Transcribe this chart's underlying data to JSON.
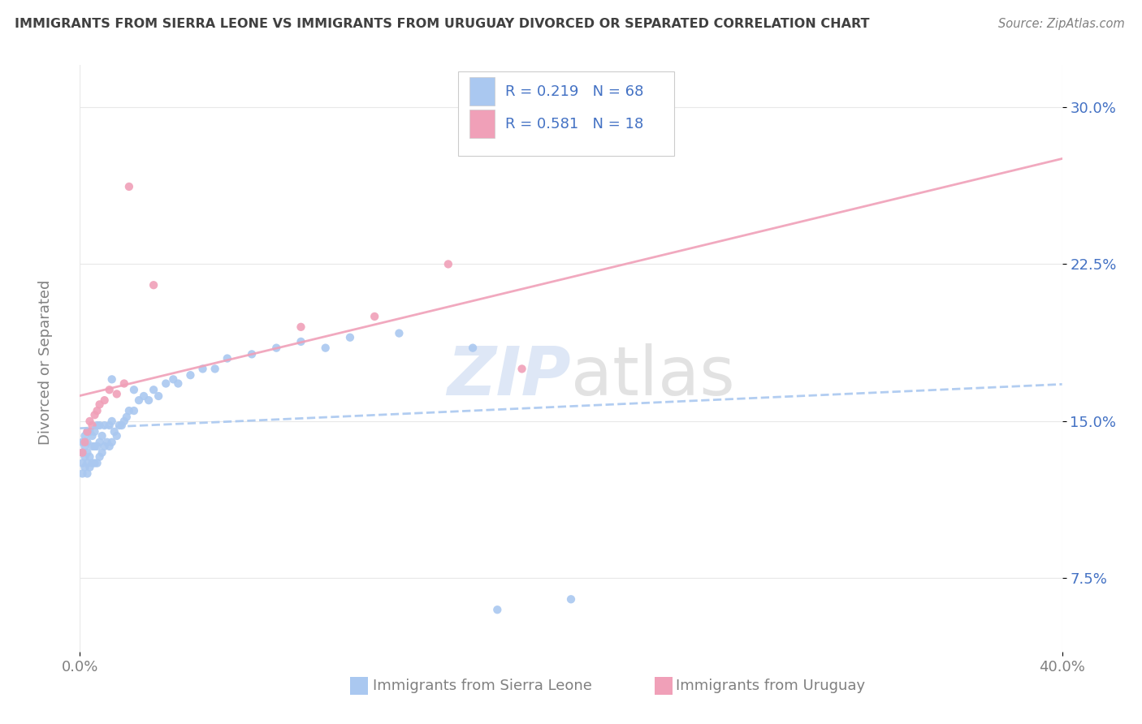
{
  "title": "IMMIGRANTS FROM SIERRA LEONE VS IMMIGRANTS FROM URUGUAY DIVORCED OR SEPARATED CORRELATION CHART",
  "source": "Source: ZipAtlas.com",
  "ylabel": "Divorced or Separated",
  "legend_r1": "R = 0.219",
  "legend_n1": "N = 68",
  "legend_r2": "R = 0.581",
  "legend_n2": "N = 18",
  "legend_label1": "Immigrants from Sierra Leone",
  "legend_label2": "Immigrants from Uruguay",
  "color_blue": "#aac8f0",
  "color_pink": "#f0a0b8",
  "color_blue_text": "#4472c4",
  "watermark_zip_color": "#c8d8f0",
  "watermark_atlas_color": "#d0d0d0",
  "xlim": [
    0.0,
    0.4
  ],
  "ylim": [
    0.04,
    0.32
  ],
  "ytick_vals": [
    0.075,
    0.15,
    0.225,
    0.3
  ],
  "ytick_labels": [
    "7.5%",
    "15.0%",
    "22.5%",
    "30.0%"
  ],
  "xtick_vals": [
    0.0,
    0.4
  ],
  "xtick_labels": [
    "0.0%",
    "40.0%"
  ],
  "grid_color": "#e8e8e8",
  "title_color": "#404040",
  "axis_label_color": "#808080",
  "blue_x": [
    0.001,
    0.001,
    0.001,
    0.001,
    0.002,
    0.002,
    0.002,
    0.002,
    0.003,
    0.003,
    0.003,
    0.003,
    0.003,
    0.004,
    0.004,
    0.004,
    0.005,
    0.005,
    0.005,
    0.006,
    0.006,
    0.006,
    0.007,
    0.007,
    0.007,
    0.008,
    0.008,
    0.008,
    0.009,
    0.009,
    0.01,
    0.01,
    0.011,
    0.012,
    0.012,
    0.013,
    0.013,
    0.014,
    0.015,
    0.016,
    0.017,
    0.018,
    0.019,
    0.02,
    0.022,
    0.024,
    0.026,
    0.028,
    0.03,
    0.032,
    0.035,
    0.038,
    0.04,
    0.045,
    0.05,
    0.055,
    0.06,
    0.07,
    0.08,
    0.09,
    0.1,
    0.11,
    0.13,
    0.16,
    0.013,
    0.022,
    0.17,
    0.2
  ],
  "blue_y": [
    0.125,
    0.13,
    0.135,
    0.14,
    0.128,
    0.133,
    0.138,
    0.143,
    0.125,
    0.13,
    0.135,
    0.14,
    0.145,
    0.128,
    0.133,
    0.145,
    0.13,
    0.138,
    0.143,
    0.13,
    0.138,
    0.145,
    0.13,
    0.138,
    0.148,
    0.133,
    0.14,
    0.148,
    0.135,
    0.143,
    0.138,
    0.148,
    0.14,
    0.138,
    0.148,
    0.14,
    0.15,
    0.145,
    0.143,
    0.148,
    0.148,
    0.15,
    0.152,
    0.155,
    0.155,
    0.16,
    0.162,
    0.16,
    0.165,
    0.162,
    0.168,
    0.17,
    0.168,
    0.172,
    0.175,
    0.175,
    0.18,
    0.182,
    0.185,
    0.188,
    0.185,
    0.19,
    0.192,
    0.185,
    0.17,
    0.165,
    0.06,
    0.065
  ],
  "pink_x": [
    0.001,
    0.002,
    0.003,
    0.004,
    0.005,
    0.006,
    0.007,
    0.008,
    0.01,
    0.012,
    0.015,
    0.018,
    0.02,
    0.03,
    0.09,
    0.12,
    0.15,
    0.18
  ],
  "pink_y": [
    0.135,
    0.14,
    0.145,
    0.15,
    0.148,
    0.153,
    0.155,
    0.158,
    0.16,
    0.165,
    0.163,
    0.168,
    0.262,
    0.215,
    0.195,
    0.2,
    0.225,
    0.175
  ]
}
